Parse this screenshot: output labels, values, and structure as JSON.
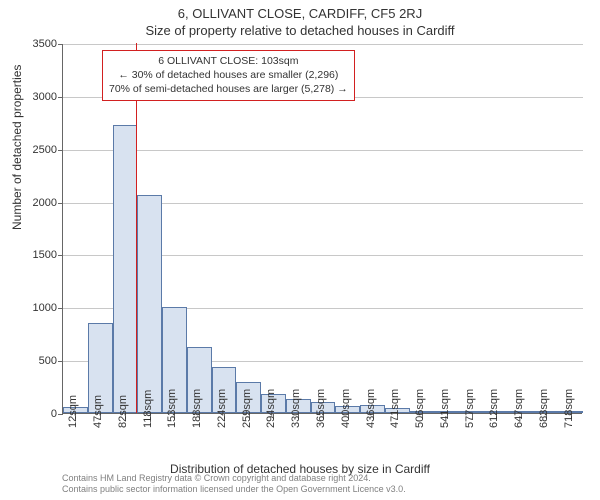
{
  "title_line1": "6, OLLIVANT CLOSE, CARDIFF, CF5 2RJ",
  "title_line2": "Size of property relative to detached houses in Cardiff",
  "y_axis_label": "Number of detached properties",
  "x_axis_label": "Distribution of detached houses by size in Cardiff",
  "chart": {
    "type": "histogram",
    "ylim": [
      0,
      3500
    ],
    "ytick_step": 500,
    "bar_fill": "#d8e2f0",
    "bar_border": "#5b7aa8",
    "grid_color": "#c8c8c8",
    "background": "#ffffff",
    "axis_color": "#666666",
    "refline_color": "#d22020",
    "refline_x_value": 103,
    "bins": [
      {
        "label": "12sqm",
        "start": 0,
        "count": 60
      },
      {
        "label": "47sqm",
        "start": 35,
        "count": 850
      },
      {
        "label": "82sqm",
        "start": 70,
        "count": 2720
      },
      {
        "label": "118sqm",
        "start": 105,
        "count": 2060
      },
      {
        "label": "153sqm",
        "start": 140,
        "count": 1000
      },
      {
        "label": "188sqm",
        "start": 175,
        "count": 620
      },
      {
        "label": "224sqm",
        "start": 210,
        "count": 440
      },
      {
        "label": "259sqm",
        "start": 245,
        "count": 290
      },
      {
        "label": "294sqm",
        "start": 280,
        "count": 180
      },
      {
        "label": "330sqm",
        "start": 315,
        "count": 130
      },
      {
        "label": "365sqm",
        "start": 350,
        "count": 100
      },
      {
        "label": "400sqm",
        "start": 385,
        "count": 70
      },
      {
        "label": "436sqm",
        "start": 420,
        "count": 80
      },
      {
        "label": "471sqm",
        "start": 455,
        "count": 50
      },
      {
        "label": "506sqm",
        "start": 490,
        "count": 20
      },
      {
        "label": "541sqm",
        "start": 525,
        "count": 10
      },
      {
        "label": "577sqm",
        "start": 560,
        "count": 10
      },
      {
        "label": "612sqm",
        "start": 595,
        "count": 5
      },
      {
        "label": "647sqm",
        "start": 630,
        "count": 5
      },
      {
        "label": "683sqm",
        "start": 665,
        "count": 5
      },
      {
        "label": "718sqm",
        "start": 700,
        "count": 5
      }
    ],
    "x_domain": [
      0,
      735
    ]
  },
  "annotation": {
    "border_color": "#d22020",
    "lines": [
      "6 OLLIVANT CLOSE: 103sqm",
      "← 30% of detached houses are smaller (2,296)",
      "70% of semi-detached houses are larger (5,278) →"
    ]
  },
  "footer_line1": "Contains HM Land Registry data © Crown copyright and database right 2024.",
  "footer_line2": "Contains public sector information licensed under the Open Government Licence v3.0."
}
